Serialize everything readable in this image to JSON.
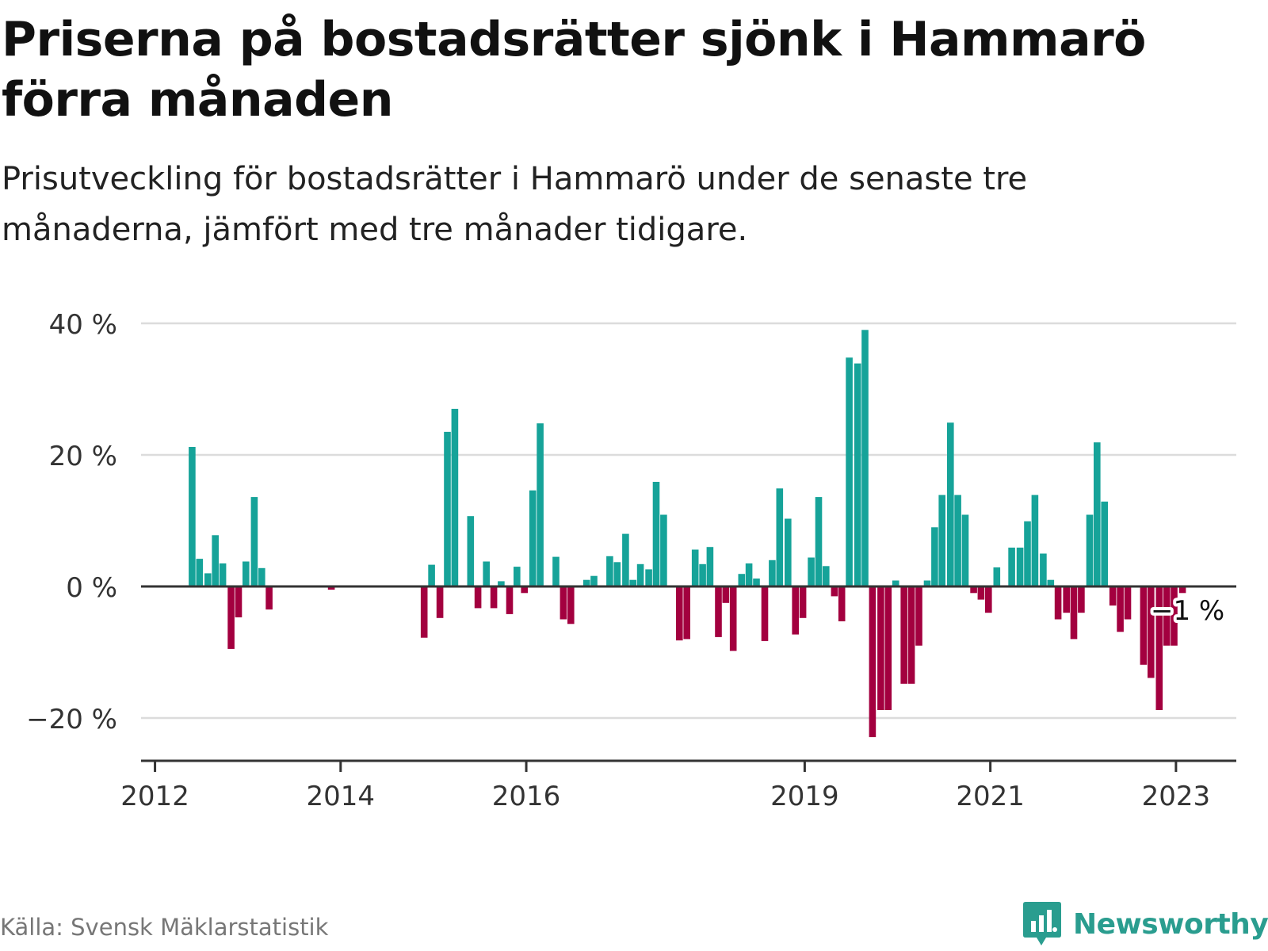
{
  "header": {
    "title": "Priserna på bostadsrätter sjönk i Hammarö förra månaden",
    "subtitle": "Prisutveckling för bostadsrätter i Hammarö under de senaste tre månaderna, jämfört med tre månader tidigare."
  },
  "footer": {
    "source": "Källa: Svensk Mäklarstatistik",
    "brand": "Newsworthy"
  },
  "colors": {
    "positive": "#16a399",
    "negative": "#a3003f",
    "grid": "#dcdcdc",
    "axis": "#333333",
    "brand": "#2a9d8f"
  },
  "icons": {
    "brand_logo": "bar-chart-speech-bubble-icon"
  },
  "chart_data": {
    "type": "bar",
    "title": "",
    "xlabel": "",
    "ylabel": "",
    "ylim": [
      -26,
      41
    ],
    "y_ticks": [
      40,
      20,
      0,
      -20
    ],
    "y_tick_labels": [
      "40 %",
      "20 %",
      "0 %",
      "−20 %"
    ],
    "x_ticks": [
      2012,
      2014,
      2016,
      2019,
      2021,
      2023
    ],
    "x_tick_labels": [
      "2012",
      "2014",
      "2016",
      "2019",
      "2021",
      "2023"
    ],
    "x_range": [
      2011.85,
      2023.65
    ],
    "grid": true,
    "legend": "none",
    "last_value_label": "−1 %",
    "series": [
      {
        "values": [
          {
            "x": 2012.4,
            "y": 21.2
          },
          {
            "x": 2012.48,
            "y": 4.2
          },
          {
            "x": 2012.57,
            "y": 2.0
          },
          {
            "x": 2012.65,
            "y": 7.8
          },
          {
            "x": 2012.73,
            "y": 3.5
          },
          {
            "x": 2012.82,
            "y": -9.5
          },
          {
            "x": 2012.9,
            "y": -4.7
          },
          {
            "x": 2012.98,
            "y": 3.8
          },
          {
            "x": 2013.07,
            "y": 13.6
          },
          {
            "x": 2013.15,
            "y": 2.8
          },
          {
            "x": 2013.23,
            "y": -3.5
          },
          {
            "x": 2013.9,
            "y": -0.5
          },
          {
            "x": 2014.9,
            "y": -7.8
          },
          {
            "x": 2014.98,
            "y": 3.3
          },
          {
            "x": 2015.07,
            "y": -4.8
          },
          {
            "x": 2015.15,
            "y": 23.5
          },
          {
            "x": 2015.23,
            "y": 27.0
          },
          {
            "x": 2015.4,
            "y": 10.7
          },
          {
            "x": 2015.48,
            "y": -3.3
          },
          {
            "x": 2015.57,
            "y": 3.8
          },
          {
            "x": 2015.65,
            "y": -3.3
          },
          {
            "x": 2015.73,
            "y": 0.8
          },
          {
            "x": 2015.82,
            "y": -4.2
          },
          {
            "x": 2015.9,
            "y": 3.0
          },
          {
            "x": 2015.98,
            "y": -1.0
          },
          {
            "x": 2016.07,
            "y": 14.6
          },
          {
            "x": 2016.15,
            "y": 24.8
          },
          {
            "x": 2016.32,
            "y": 4.5
          },
          {
            "x": 2016.4,
            "y": -5.0
          },
          {
            "x": 2016.48,
            "y": -5.7
          },
          {
            "x": 2016.65,
            "y": 1.0
          },
          {
            "x": 2016.73,
            "y": 1.6
          },
          {
            "x": 2016.9,
            "y": 4.6
          },
          {
            "x": 2016.98,
            "y": 3.7
          },
          {
            "x": 2017.07,
            "y": 8.0
          },
          {
            "x": 2017.15,
            "y": 1.0
          },
          {
            "x": 2017.23,
            "y": 3.4
          },
          {
            "x": 2017.32,
            "y": 2.6
          },
          {
            "x": 2017.4,
            "y": 15.9
          },
          {
            "x": 2017.48,
            "y": 10.9
          },
          {
            "x": 2017.65,
            "y": -8.2
          },
          {
            "x": 2017.73,
            "y": -8.0
          },
          {
            "x": 2017.82,
            "y": 5.6
          },
          {
            "x": 2017.9,
            "y": 3.4
          },
          {
            "x": 2017.98,
            "y": 6.0
          },
          {
            "x": 2018.07,
            "y": -7.7
          },
          {
            "x": 2018.15,
            "y": -2.5
          },
          {
            "x": 2018.23,
            "y": -9.8
          },
          {
            "x": 2018.32,
            "y": 1.9
          },
          {
            "x": 2018.4,
            "y": 3.5
          },
          {
            "x": 2018.48,
            "y": 1.2
          },
          {
            "x": 2018.57,
            "y": -8.3
          },
          {
            "x": 2018.65,
            "y": 4.0
          },
          {
            "x": 2018.73,
            "y": 14.9
          },
          {
            "x": 2018.82,
            "y": 10.3
          },
          {
            "x": 2018.9,
            "y": -7.3
          },
          {
            "x": 2018.98,
            "y": -4.8
          },
          {
            "x": 2019.07,
            "y": 4.4
          },
          {
            "x": 2019.15,
            "y": 13.6
          },
          {
            "x": 2019.23,
            "y": 3.1
          },
          {
            "x": 2019.32,
            "y": -1.5
          },
          {
            "x": 2019.4,
            "y": -5.3
          },
          {
            "x": 2019.48,
            "y": 34.8
          },
          {
            "x": 2019.57,
            "y": 33.9
          },
          {
            "x": 2019.65,
            "y": 39.0
          },
          {
            "x": 2019.73,
            "y": -22.9
          },
          {
            "x": 2019.82,
            "y": -18.8
          },
          {
            "x": 2019.9,
            "y": -18.8
          },
          {
            "x": 2019.98,
            "y": 0.9
          },
          {
            "x": 2020.07,
            "y": -14.8
          },
          {
            "x": 2020.15,
            "y": -14.8
          },
          {
            "x": 2020.23,
            "y": -9.0
          },
          {
            "x": 2020.32,
            "y": 0.9
          },
          {
            "x": 2020.4,
            "y": 9.0
          },
          {
            "x": 2020.48,
            "y": 13.9
          },
          {
            "x": 2020.57,
            "y": 24.9
          },
          {
            "x": 2020.65,
            "y": 13.9
          },
          {
            "x": 2020.73,
            "y": 10.9
          },
          {
            "x": 2020.82,
            "y": -1.0
          },
          {
            "x": 2020.9,
            "y": -2.0
          },
          {
            "x": 2020.98,
            "y": -4.0
          },
          {
            "x": 2021.07,
            "y": 2.9
          },
          {
            "x": 2021.23,
            "y": 5.9
          },
          {
            "x": 2021.32,
            "y": 5.9
          },
          {
            "x": 2021.4,
            "y": 9.9
          },
          {
            "x": 2021.48,
            "y": 13.9
          },
          {
            "x": 2021.57,
            "y": 5.0
          },
          {
            "x": 2021.65,
            "y": 1.0
          },
          {
            "x": 2021.73,
            "y": -5.0
          },
          {
            "x": 2021.82,
            "y": -4.0
          },
          {
            "x": 2021.9,
            "y": -8.0
          },
          {
            "x": 2021.98,
            "y": -4.0
          },
          {
            "x": 2022.07,
            "y": 10.9
          },
          {
            "x": 2022.15,
            "y": 21.9
          },
          {
            "x": 2022.23,
            "y": 12.9
          },
          {
            "x": 2022.32,
            "y": -2.9
          },
          {
            "x": 2022.4,
            "y": -6.9
          },
          {
            "x": 2022.48,
            "y": -5.0
          },
          {
            "x": 2022.65,
            "y": -11.9
          },
          {
            "x": 2022.73,
            "y": -13.9
          },
          {
            "x": 2022.82,
            "y": -18.8
          },
          {
            "x": 2022.9,
            "y": -9.0
          },
          {
            "x": 2022.98,
            "y": -9.0
          },
          {
            "x": 2023.07,
            "y": -1.0
          }
        ]
      }
    ]
  }
}
